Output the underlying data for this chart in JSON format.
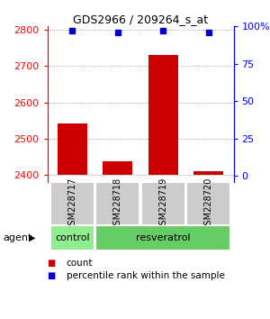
{
  "title": "GDS2966 / 209264_s_at",
  "samples": [
    "GSM228717",
    "GSM228718",
    "GSM228719",
    "GSM228720"
  ],
  "bar_values": [
    2541,
    2438,
    2730,
    2410
  ],
  "bar_base": 2400,
  "percentile_values": [
    97,
    96,
    97,
    96
  ],
  "bar_color": "#cc0000",
  "percentile_color": "#0000cc",
  "ylim_left": [
    2380,
    2810
  ],
  "yticks_left": [
    2400,
    2500,
    2600,
    2700,
    2800
  ],
  "ylim_right": [
    -4.3,
    100
  ],
  "yticks_right": [
    0,
    25,
    50,
    75,
    100
  ],
  "ytick_labels_right": [
    "0",
    "25",
    "50",
    "75",
    "100%"
  ],
  "groups": [
    {
      "label": "control",
      "n": 1,
      "color": "#90ee90"
    },
    {
      "label": "resveratrol",
      "n": 3,
      "color": "#66cc66"
    }
  ],
  "agent_label": "agent",
  "legend_items": [
    {
      "label": "count",
      "color": "#cc0000"
    },
    {
      "label": "percentile rank within the sample",
      "color": "#0000cc"
    }
  ],
  "background_color": "#ffffff",
  "grid_color": "#888888",
  "bar_width": 0.65,
  "sample_box_color": "#cccccc",
  "title_fontsize": 9,
  "tick_fontsize": 8,
  "sample_fontsize": 7,
  "group_fontsize": 8,
  "legend_fontsize": 7.5
}
